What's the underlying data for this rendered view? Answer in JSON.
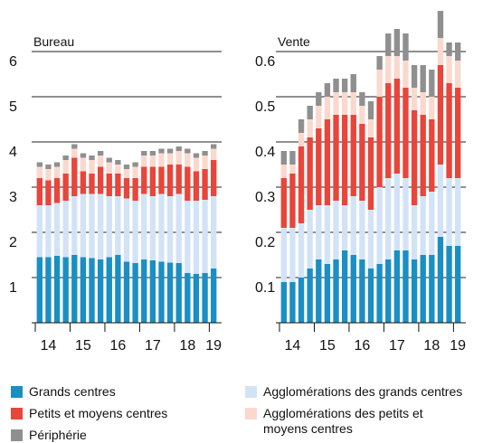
{
  "chart_data": [
    {
      "type": "bar",
      "stacked": true,
      "title": "Bureau",
      "categories": [
        null,
        "14",
        null,
        null,
        null,
        "15",
        null,
        null,
        null,
        "16",
        null,
        null,
        null,
        "17",
        null,
        null,
        null,
        "18",
        null,
        null,
        "19"
      ],
      "ylim": [
        0,
        7
      ],
      "yticks": [
        1,
        2,
        3,
        4,
        5,
        6
      ],
      "grid": true,
      "series": [
        {
          "name": "Grands centres",
          "color": "#1a8fc4",
          "values": [
            1.45,
            1.45,
            1.48,
            1.45,
            1.5,
            1.45,
            1.43,
            1.4,
            1.45,
            1.5,
            1.35,
            1.32,
            1.4,
            1.38,
            1.35,
            1.33,
            1.32,
            1.1,
            1.08,
            1.1,
            1.2
          ]
        },
        {
          "name": "Agglomérations des grands centres",
          "color": "#d3e3f6",
          "values": [
            1.15,
            1.15,
            1.17,
            1.25,
            1.3,
            1.4,
            1.42,
            1.45,
            1.35,
            1.3,
            1.4,
            1.38,
            1.45,
            1.42,
            1.5,
            1.47,
            1.53,
            1.6,
            1.62,
            1.62,
            1.6
          ]
        },
        {
          "name": "Petits et moyens centres",
          "color": "#e8453b",
          "values": [
            0.6,
            0.55,
            0.55,
            0.6,
            0.85,
            0.5,
            0.45,
            0.6,
            0.5,
            0.5,
            0.45,
            0.5,
            0.6,
            0.65,
            0.6,
            0.7,
            0.65,
            0.75,
            0.65,
            0.68,
            0.8
          ]
        },
        {
          "name": "Agglomérations des petits et moyens centres",
          "color": "#fbd8cd",
          "values": [
            0.25,
            0.25,
            0.25,
            0.3,
            0.2,
            0.3,
            0.3,
            0.25,
            0.25,
            0.2,
            0.2,
            0.25,
            0.25,
            0.25,
            0.3,
            0.25,
            0.3,
            0.3,
            0.3,
            0.3,
            0.25
          ]
        },
        {
          "name": "Périphérie",
          "color": "#8f8f8f",
          "values": [
            0.1,
            0.1,
            0.1,
            0.1,
            0.1,
            0.1,
            0.1,
            0.1,
            0.1,
            0.1,
            0.1,
            0.1,
            0.1,
            0.1,
            0.1,
            0.1,
            0.1,
            0.1,
            0.1,
            0.1,
            0.1
          ]
        }
      ]
    },
    {
      "type": "bar",
      "stacked": true,
      "title": "Vente",
      "categories": [
        null,
        "14",
        null,
        null,
        null,
        "15",
        null,
        null,
        null,
        "16",
        null,
        null,
        null,
        "17",
        null,
        null,
        null,
        "18",
        null,
        null,
        "19"
      ],
      "ylim": [
        0,
        0.7
      ],
      "yticks": [
        0.1,
        0.2,
        0.3,
        0.4,
        0.5,
        0.6
      ],
      "grid": true,
      "series": [
        {
          "name": "Grands centres",
          "color": "#1a8fc4",
          "values": [
            0.09,
            0.09,
            0.1,
            0.12,
            0.14,
            0.13,
            0.14,
            0.16,
            0.15,
            0.14,
            0.12,
            0.13,
            0.14,
            0.16,
            0.16,
            0.14,
            0.15,
            0.15,
            0.19,
            0.17,
            0.17
          ]
        },
        {
          "name": "Agglomérations des grands centres",
          "color": "#d3e3f6",
          "values": [
            0.12,
            0.12,
            0.12,
            0.13,
            0.12,
            0.13,
            0.13,
            0.1,
            0.13,
            0.13,
            0.13,
            0.17,
            0.18,
            0.17,
            0.16,
            0.12,
            0.13,
            0.14,
            0.16,
            0.15,
            0.15
          ]
        },
        {
          "name": "Petits et moyens centres",
          "color": "#e8453b",
          "values": [
            0.11,
            0.12,
            0.17,
            0.16,
            0.17,
            0.19,
            0.19,
            0.2,
            0.18,
            0.17,
            0.16,
            0.2,
            0.21,
            0.21,
            0.2,
            0.21,
            0.18,
            0.16,
            0.22,
            0.21,
            0.2
          ]
        },
        {
          "name": "Agglomérations des petits et moyens centres",
          "color": "#fbd8cd",
          "values": [
            0.03,
            0.02,
            0.03,
            0.04,
            0.05,
            0.05,
            0.05,
            0.05,
            0.05,
            0.04,
            0.04,
            0.06,
            0.06,
            0.05,
            0.06,
            0.05,
            0.05,
            0.05,
            0.06,
            0.06,
            0.06
          ]
        },
        {
          "name": "Périphérie",
          "color": "#8f8f8f",
          "values": [
            0.03,
            0.03,
            0.03,
            0.03,
            0.03,
            0.03,
            0.03,
            0.03,
            0.04,
            0.03,
            0.04,
            0.03,
            0.05,
            0.06,
            0.06,
            0.05,
            0.06,
            0.06,
            0.06,
            0.03,
            0.04
          ]
        }
      ]
    }
  ]
}
